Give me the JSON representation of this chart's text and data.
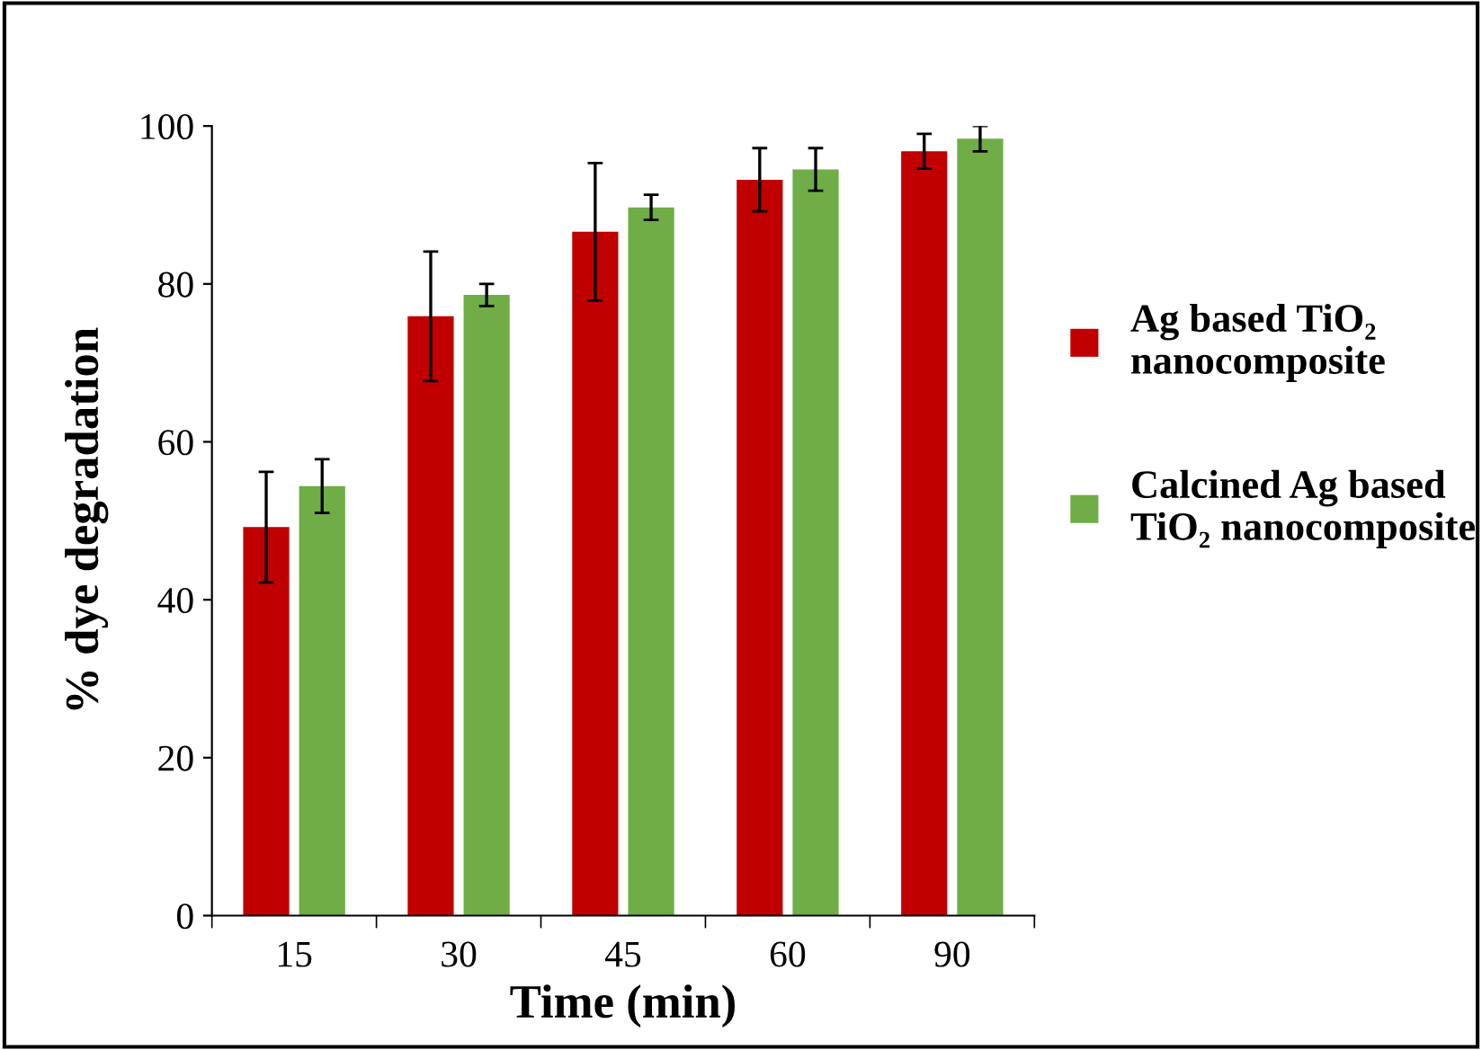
{
  "chart_data": {
    "type": "bar",
    "xlabel": "Time (min)",
    "ylabel": "% dye degradation",
    "categories": [
      "15",
      "30",
      "45",
      "60",
      "90"
    ],
    "series": [
      {
        "name": "Ag based TiO₂\nnanocomposite",
        "color": "#c00000",
        "values": [
          49.2,
          75.9,
          86.6,
          93.2,
          96.8
        ],
        "errors": [
          7.0,
          8.2,
          8.7,
          4.0,
          2.2
        ]
      },
      {
        "name": "Calcined Ag based\nTiO₂ nanocomposite",
        "color": "#70ad47",
        "values": [
          54.4,
          78.6,
          89.7,
          94.5,
          98.4
        ],
        "errors": [
          3.4,
          1.4,
          1.6,
          2.7,
          1.6
        ]
      }
    ],
    "ylim": [
      0,
      100
    ],
    "yticks": [
      0,
      20,
      40,
      60,
      80,
      100
    ],
    "grid": false,
    "legend": "right"
  }
}
